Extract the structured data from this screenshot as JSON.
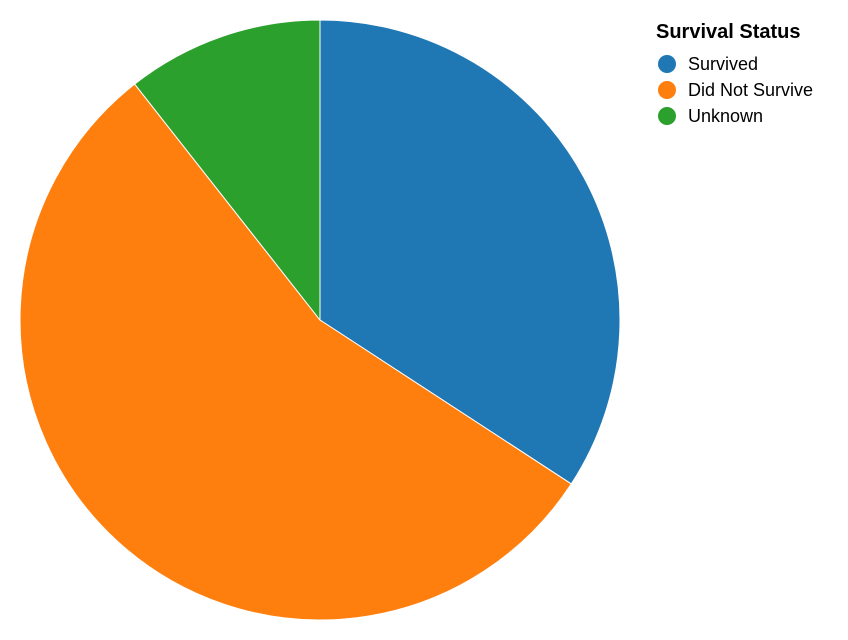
{
  "chart_data": {
    "type": "pie",
    "legend_title": "Survival Status",
    "legend_position": "top-right",
    "start_angle": "12 o'clock, clockwise",
    "categories": [
      "Survived",
      "Did Not Survive",
      "Unknown"
    ],
    "values": [
      34.2,
      55.2,
      10.6
    ],
    "colors": [
      "#1f77b4",
      "#ff7f0e",
      "#2ca02c"
    ]
  }
}
